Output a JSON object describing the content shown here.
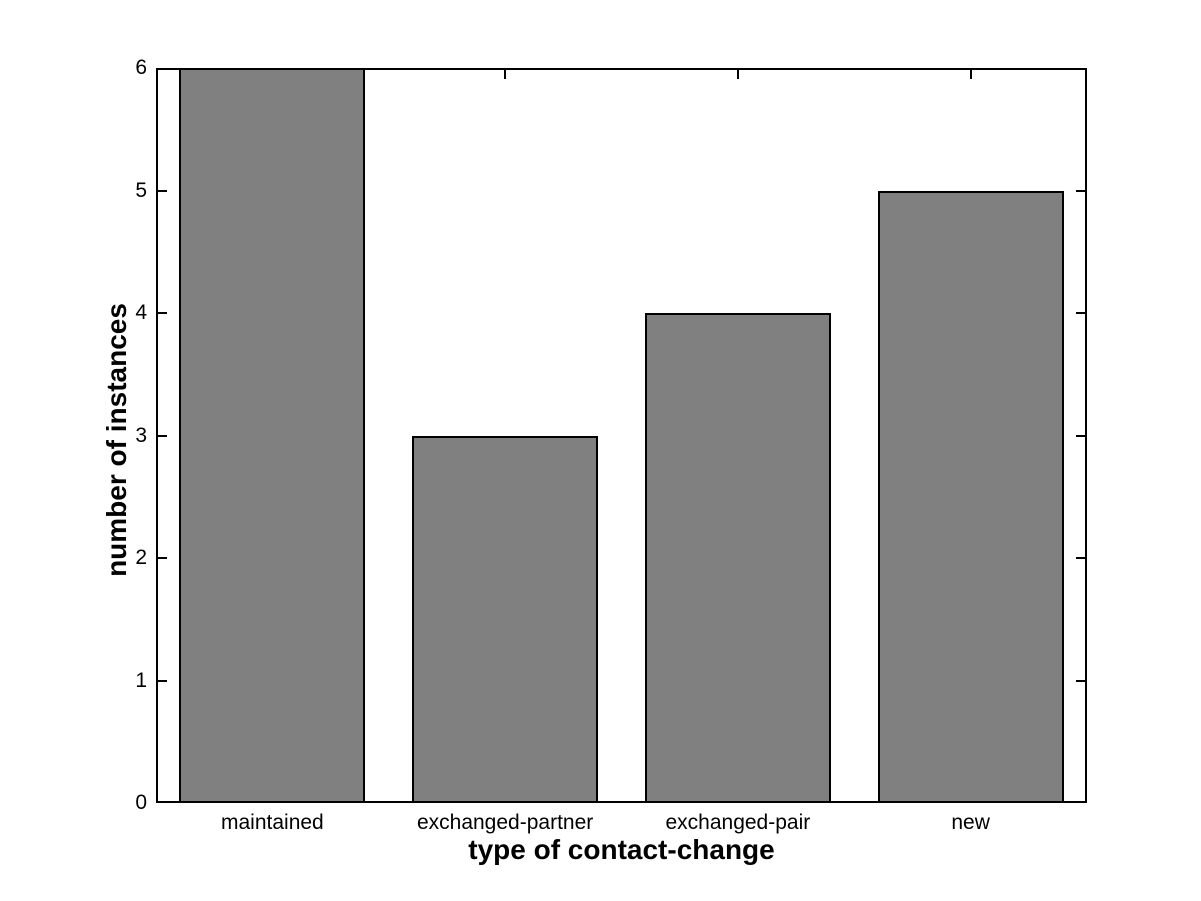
{
  "chart_data": {
    "type": "bar",
    "title": "",
    "categories": [
      "maintained",
      "exchanged-partner",
      "exchanged-pair",
      "new"
    ],
    "values": [
      6,
      3,
      4,
      5
    ],
    "xlabel": "type of contact-change",
    "ylabel": "number of instances",
    "ylim": [
      0,
      6
    ],
    "yticks": [
      0,
      1,
      2,
      3,
      4,
      5,
      6
    ],
    "bar_width_fraction": 0.8,
    "grid": false,
    "legend": "none",
    "colors": {
      "bar_fill": "#808080",
      "bar_edge": "#000000",
      "axis": "#000000",
      "text": "#000000",
      "background": "#ffffff"
    }
  }
}
